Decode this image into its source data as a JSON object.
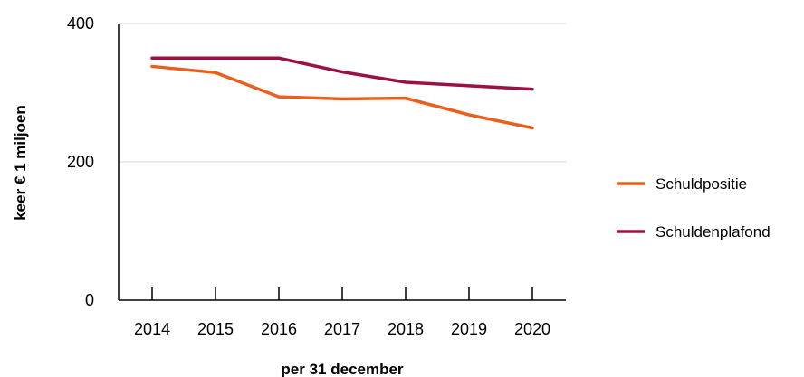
{
  "chart_data": {
    "type": "line",
    "title": "",
    "xlabel": "per 31 december",
    "ylabel": "keer € 1 miljoen",
    "categories": [
      "2014",
      "2015",
      "2016",
      "2017",
      "2018",
      "2019",
      "2020"
    ],
    "ylim": [
      0,
      400
    ],
    "yticks": [
      0,
      200,
      400
    ],
    "grid": true,
    "legend": "right",
    "series": [
      {
        "name": "Schuldpositie",
        "color": "#e8601c",
        "values": [
          338,
          329,
          294,
          291,
          292,
          268,
          249
        ]
      },
      {
        "name": "Schuldenplafond",
        "color": "#9b1045",
        "values": [
          350,
          350,
          350,
          330,
          315,
          310,
          305
        ]
      }
    ]
  }
}
